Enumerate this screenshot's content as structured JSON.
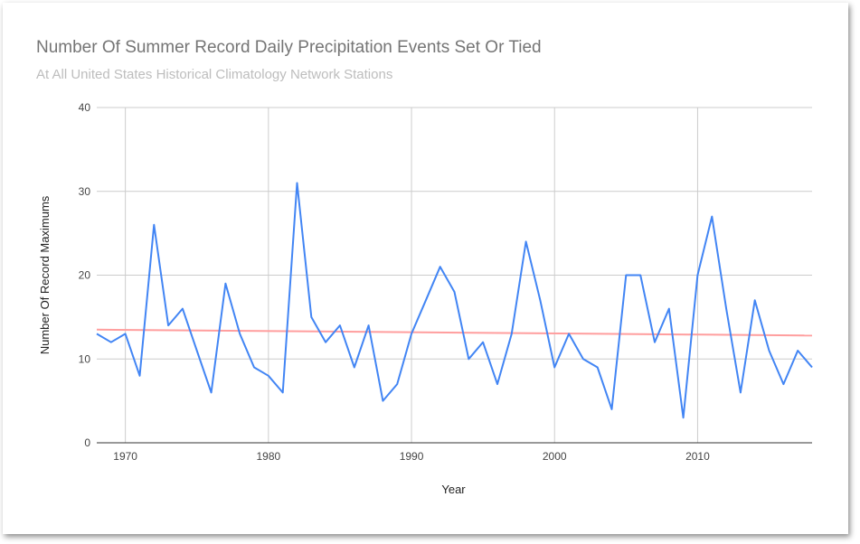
{
  "chart_data": {
    "type": "line",
    "title": "Number Of Summer Record Daily Precipitation Events Set Or Tied",
    "subtitle": "At All United States Historical Climatology Network Stations",
    "xlabel": "Year",
    "ylabel": "Number Of Record Maximums",
    "xlim": [
      1968,
      2018
    ],
    "ylim": [
      0,
      40
    ],
    "x_ticks": [
      1970,
      1980,
      1990,
      2000,
      2010
    ],
    "y_ticks": [
      0,
      10,
      20,
      30,
      40
    ],
    "grid": true,
    "legend": "none",
    "series": [
      {
        "color": "#4285f4",
        "x": [
          1968,
          1969,
          1970,
          1971,
          1972,
          1973,
          1974,
          1975,
          1976,
          1977,
          1978,
          1979,
          1980,
          1981,
          1982,
          1983,
          1984,
          1985,
          1986,
          1987,
          1988,
          1989,
          1990,
          1991,
          1992,
          1993,
          1994,
          1995,
          1996,
          1997,
          1998,
          1999,
          2000,
          2001,
          2002,
          2003,
          2004,
          2005,
          2006,
          2007,
          2008,
          2009,
          2010,
          2011,
          2012,
          2013,
          2014,
          2015,
          2016,
          2017,
          2018
        ],
        "values": [
          13,
          12,
          13,
          8,
          26,
          14,
          16,
          11,
          6,
          19,
          13,
          9,
          8,
          6,
          31,
          15,
          12,
          14,
          9,
          14,
          5,
          7,
          13,
          17,
          21,
          18,
          10,
          12,
          7,
          13,
          24,
          17,
          9,
          13,
          10,
          9,
          4,
          20,
          20,
          12,
          16,
          3,
          20,
          27,
          16,
          6,
          17,
          11,
          7,
          11,
          9
        ]
      },
      {
        "color": "#ff9e9e",
        "x": [
          1968,
          2018
        ],
        "values": [
          13.5,
          12.8
        ]
      }
    ]
  }
}
